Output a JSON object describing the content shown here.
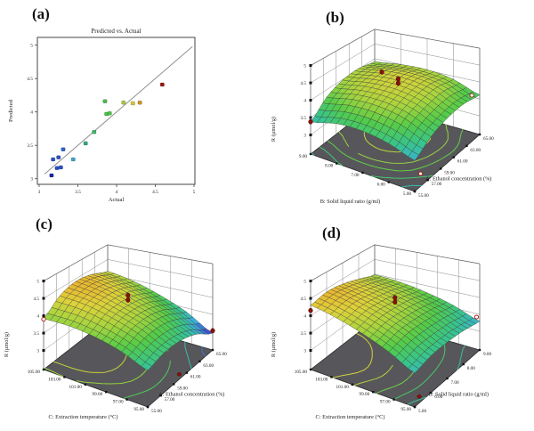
{
  "figure": {
    "background": "#ffffff"
  },
  "panels": [
    {
      "id": "a",
      "label": "(a)"
    },
    {
      "id": "b",
      "label": "(b)"
    },
    {
      "id": "c",
      "label": "(c)"
    },
    {
      "id": "d",
      "label": "(d)"
    }
  ],
  "colors": {
    "colormap": [
      {
        "t": 0.0,
        "color": "#4048cc"
      },
      {
        "t": 0.12,
        "color": "#3ab0dc"
      },
      {
        "t": 0.25,
        "color": "#38c48c"
      },
      {
        "t": 0.38,
        "color": "#54cc48"
      },
      {
        "t": 0.5,
        "color": "#a6d43e"
      },
      {
        "t": 0.62,
        "color": "#ddd23a"
      },
      {
        "t": 0.74,
        "color": "#eeaa2c"
      },
      {
        "t": 0.88,
        "color": "#e0661e"
      },
      {
        "t": 1.0,
        "color": "#c23014"
      }
    ],
    "floor": "#57575b",
    "design_point_red": "#8b1208",
    "design_point_white": "#ffffff",
    "identity_line": "#909090",
    "mesh_line": "#3a3a3a"
  },
  "chart_data": [
    {
      "panel": "a",
      "type": "scatter",
      "title": "Predicted vs. Actual",
      "xlabel": "Actual",
      "ylabel": "Predicted",
      "xlim": [
        3,
        5
      ],
      "ylim": [
        3,
        5
      ],
      "xticks": [
        "3",
        "3.5",
        "4",
        "4.5",
        "5"
      ],
      "yticks": [
        "3",
        "3.5",
        "4",
        "4.5",
        "5"
      ],
      "identity_line": true,
      "points": [
        {
          "x": 3.16,
          "y": 3.05,
          "color": "#1c24a8"
        },
        {
          "x": 3.23,
          "y": 3.16,
          "color": "#2a50c8"
        },
        {
          "x": 3.28,
          "y": 3.17,
          "color": "#2a50c8"
        },
        {
          "x": 3.18,
          "y": 3.29,
          "color": "#2a50c8"
        },
        {
          "x": 3.25,
          "y": 3.32,
          "color": "#2a50c8"
        },
        {
          "x": 3.31,
          "y": 3.44,
          "color": "#2562d2"
        },
        {
          "x": 3.44,
          "y": 3.29,
          "color": "#38a8cc"
        },
        {
          "x": 3.6,
          "y": 3.53,
          "color": "#2ca888"
        },
        {
          "x": 3.71,
          "y": 3.7,
          "color": "#3cb868"
        },
        {
          "x": 3.85,
          "y": 4.16,
          "color": "#44bc44"
        },
        {
          "x": 3.87,
          "y": 3.97,
          "color": "#48c444"
        },
        {
          "x": 3.91,
          "y": 3.98,
          "color": "#48c444"
        },
        {
          "x": 4.09,
          "y": 4.14,
          "color": "#a8c83a"
        },
        {
          "x": 4.21,
          "y": 4.13,
          "color": "#d2c832"
        },
        {
          "x": 4.3,
          "y": 4.14,
          "color": "#cc9428"
        },
        {
          "x": 4.59,
          "y": 4.41,
          "color": "#9c1410"
        }
      ]
    },
    {
      "panel": "b",
      "type": "surface3d",
      "z_axis": {
        "label": "R (µmol/g)",
        "min": 3,
        "max": 5,
        "ticks": [
          "3",
          "3.5",
          "4",
          "4.5",
          "5"
        ]
      },
      "x_axis": {
        "label": "A: Ethanol concentration (%)",
        "min": 55,
        "max": 65,
        "ticks": [
          "55.00",
          "57.00",
          "59.00",
          "61.00",
          "63.00",
          "65.00"
        ]
      },
      "y_axis": {
        "label": "B: Solid liquid ratio (g/ml)",
        "min": 5,
        "max": 9,
        "ticks": [
          "5.00",
          "6.00",
          "7.00",
          "8.00",
          "9.00"
        ]
      },
      "z_grid": {
        "x_values": [
          55,
          57.5,
          60,
          62.5,
          65
        ],
        "y_values": [
          5,
          6,
          7,
          8,
          9
        ],
        "z": [
          [
            3.3,
            3.58,
            3.72,
            3.74,
            3.62
          ],
          [
            3.52,
            3.86,
            4.02,
            4.05,
            3.9
          ],
          [
            3.62,
            3.98,
            4.15,
            4.18,
            4.02
          ],
          [
            3.58,
            3.95,
            4.12,
            4.15,
            4.0
          ],
          [
            3.38,
            3.78,
            3.98,
            4.02,
            3.9
          ]
        ]
      },
      "contour_levels": [
        3.4,
        3.6,
        3.8,
        3.95,
        4.1
      ],
      "design_points": [
        {
          "x": 60.0,
          "y": 7.5,
          "z": 4.55,
          "style": "red"
        },
        {
          "x": 60.5,
          "y": 7.0,
          "z": 4.38,
          "style": "red"
        },
        {
          "x": 60.5,
          "y": 7.0,
          "z": 4.25,
          "style": "red"
        },
        {
          "x": 55.0,
          "y": 9.0,
          "z": 3.38,
          "style": "red"
        },
        {
          "x": 65.0,
          "y": 5.3,
          "z": 3.55,
          "style": "white"
        },
        {
          "x": 57.5,
          "y": 5.4,
          "z": null,
          "on_floor": true,
          "style": "white"
        }
      ]
    },
    {
      "panel": "c",
      "type": "surface3d",
      "z_axis": {
        "label": "R (µmol/g)",
        "min": 3,
        "max": 5,
        "ticks": [
          "3",
          "3.5",
          "4",
          "4.5",
          "5"
        ]
      },
      "x_axis": {
        "label": "A: Ethanol concentration (%)",
        "min": 55,
        "max": 65,
        "ticks": [
          "55.00",
          "57.00",
          "59.00",
          "61.00",
          "63.00",
          "65.00"
        ]
      },
      "y_axis": {
        "label": "C: Extraction temperature (°C)",
        "min": 95,
        "max": 105,
        "ticks": [
          "95.00",
          "97.00",
          "99.00",
          "101.00",
          "103.00",
          "105.00"
        ]
      },
      "z_grid": {
        "x_values": [
          55,
          57.5,
          60,
          62.5,
          65
        ],
        "y_values": [
          95,
          97.5,
          100,
          102.5,
          105
        ],
        "z": [
          [
            3.45,
            3.56,
            3.52,
            3.32,
            2.95
          ],
          [
            3.72,
            3.88,
            3.88,
            3.7,
            3.38
          ],
          [
            3.88,
            4.1,
            4.12,
            3.98,
            3.7
          ],
          [
            3.95,
            4.25,
            4.32,
            4.2,
            3.95
          ],
          [
            3.92,
            4.28,
            4.42,
            4.33,
            4.1
          ]
        ]
      },
      "contour_levels": [
        3.1,
        3.4,
        3.7,
        3.95,
        4.15
      ],
      "design_points": [
        {
          "x": 60.0,
          "y": 100.0,
          "z": 4.42,
          "style": "red"
        },
        {
          "x": 60.0,
          "y": 100.0,
          "z": 4.28,
          "style": "red"
        },
        {
          "x": 55.0,
          "y": 105.0,
          "z": 3.9,
          "style": "white"
        },
        {
          "x": 65.0,
          "y": 95.0,
          "z": 3.02,
          "style": "red"
        },
        {
          "x": 60.5,
          "y": 95.4,
          "z": null,
          "on_floor": true,
          "style": "red"
        }
      ]
    },
    {
      "panel": "d",
      "type": "surface3d",
      "z_axis": {
        "label": "R (µmol/g)",
        "min": 3,
        "max": 5,
        "ticks": [
          "3",
          "3.5",
          "4",
          "4.5",
          "5"
        ]
      },
      "x_axis": {
        "label": "B: Solid liquid ratio (g/ml)",
        "min": 5,
        "max": 9,
        "ticks": [
          "5.00",
          "6.00",
          "7.00",
          "8.00",
          "9.00"
        ]
      },
      "y_axis": {
        "label": "C: Extraction temperature (°C)",
        "min": 95,
        "max": 105,
        "ticks": [
          "95.00",
          "97.00",
          "99.00",
          "101.00",
          "103.00",
          "105.00"
        ]
      },
      "z_grid": {
        "x_values": [
          5,
          6,
          7,
          8,
          9
        ],
        "y_values": [
          95,
          97.5,
          100,
          102.5,
          105
        ],
        "z": [
          [
            3.38,
            3.48,
            3.48,
            3.42,
            3.3
          ],
          [
            3.72,
            3.82,
            3.8,
            3.72,
            3.58
          ],
          [
            3.98,
            4.08,
            4.05,
            3.95,
            3.78
          ],
          [
            4.18,
            4.28,
            4.22,
            4.1,
            3.92
          ],
          [
            4.3,
            4.4,
            4.34,
            4.18,
            3.98
          ]
        ]
      },
      "contour_levels": [
        3.45,
        3.65,
        3.85,
        4.05,
        4.2
      ],
      "design_points": [
        {
          "x": 5.0,
          "y": 105.0,
          "z": 4.15,
          "style": "red"
        },
        {
          "x": 7.0,
          "y": 100.0,
          "z": 4.35,
          "style": "red"
        },
        {
          "x": 7.0,
          "y": 100.0,
          "z": 4.22,
          "style": "red"
        },
        {
          "x": 9.0,
          "y": 95.3,
          "z": 3.4,
          "style": "white"
        },
        {
          "x": 5.6,
          "y": 95.5,
          "z": null,
          "on_floor": true,
          "style": "red"
        }
      ]
    }
  ]
}
